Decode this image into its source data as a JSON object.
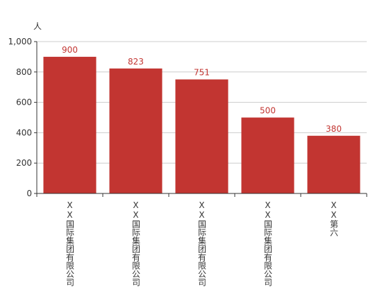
{
  "chart_data": {
    "type": "bar",
    "y_axis_label": "人",
    "categories": [
      "XX国际集团有限公司",
      "XX国际集团有限公司",
      "XX国际集团有限公司",
      "XX国际集团有限公司",
      "XX第六"
    ],
    "values": [
      900,
      823,
      751,
      500,
      380
    ],
    "color": "#c23531",
    "ylim": [
      0,
      1000
    ],
    "yticks": [
      0,
      200,
      400,
      600,
      800,
      {
        "value": 1000,
        "label": "1,000"
      }
    ],
    "grid": true
  }
}
